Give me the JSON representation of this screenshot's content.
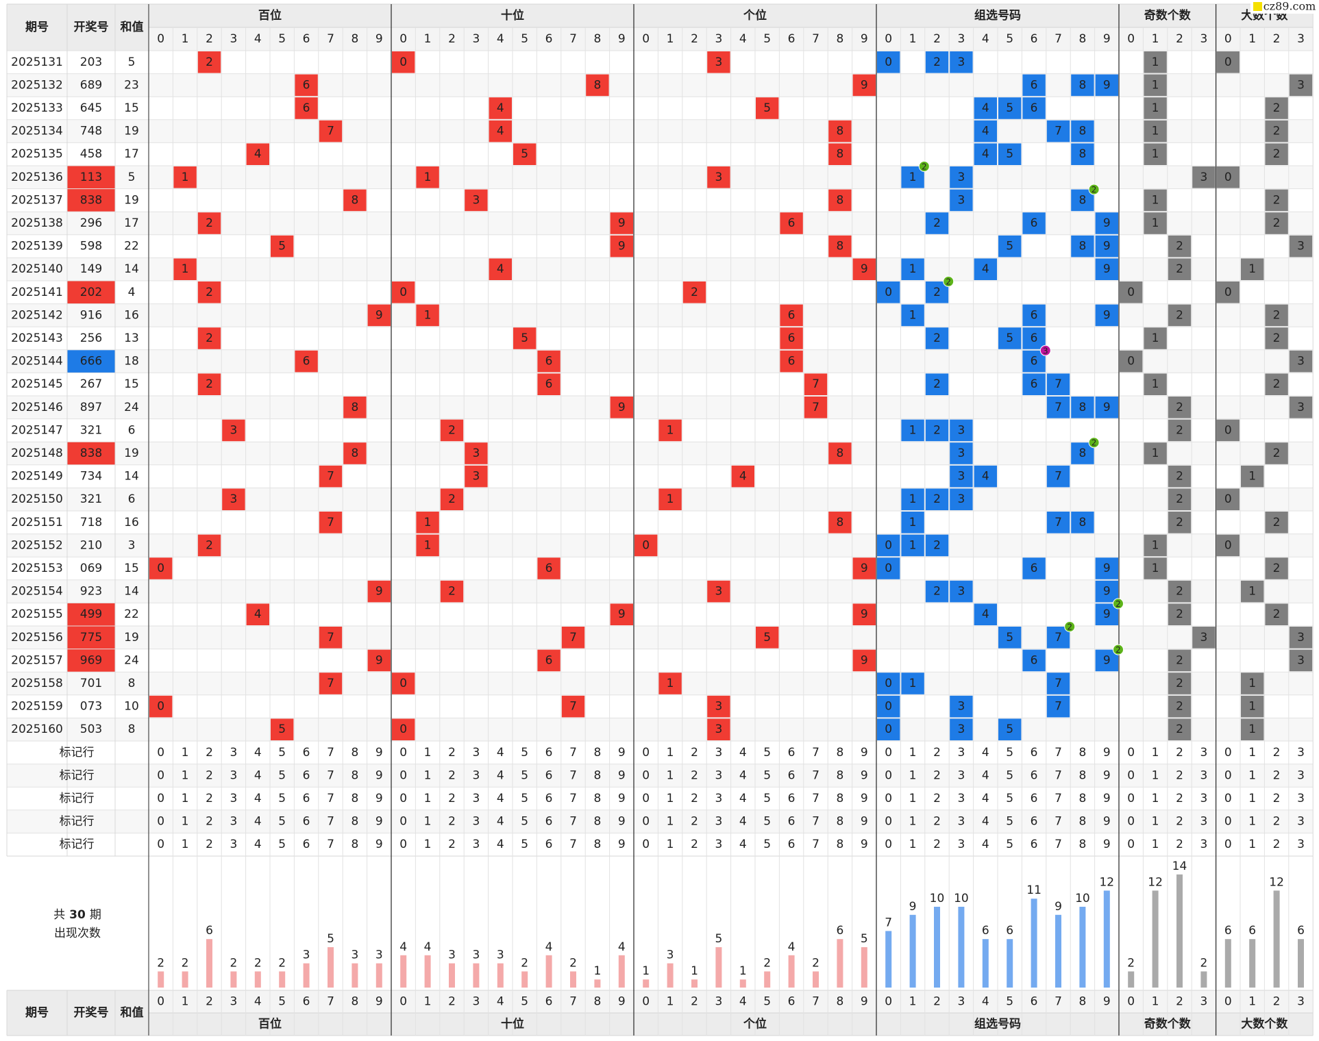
{
  "header": {
    "issue": "期号",
    "number": "开奖号",
    "sum": "和值"
  },
  "watermark": "cz89.com",
  "groups": [
    {
      "name": "百位",
      "digits": [
        0,
        1,
        2,
        3,
        4,
        5,
        6,
        7,
        8,
        9
      ],
      "color": "#f03c33",
      "bar_color": "#f4a9a9",
      "count_color": "#e8453c"
    },
    {
      "name": "十位",
      "digits": [
        0,
        1,
        2,
        3,
        4,
        5,
        6,
        7,
        8,
        9
      ],
      "color": "#f03c33",
      "bar_color": "#f4a9a9",
      "count_color": "#e8453c"
    },
    {
      "name": "个位",
      "digits": [
        0,
        1,
        2,
        3,
        4,
        5,
        6,
        7,
        8,
        9
      ],
      "color": "#f03c33",
      "bar_color": "#f4a9a9",
      "count_color": "#e8453c"
    },
    {
      "name": "组选号码",
      "digits": [
        0,
        1,
        2,
        3,
        4,
        5,
        6,
        7,
        8,
        9
      ],
      "color": "#1e7be6",
      "bar_color": "#74aaf0",
      "count_color": "#2a78d0"
    },
    {
      "name": "奇数个数",
      "digits": [
        0,
        1,
        2,
        3
      ],
      "color": "#7f7f7f",
      "bar_color": "#aaaaaa",
      "count_color": "#666666"
    },
    {
      "name": "大数个数",
      "digits": [
        0,
        1,
        2,
        3
      ],
      "color": "#7f7f7f",
      "bar_color": "#aaaaaa",
      "count_color": "#666666"
    }
  ],
  "highlight_colors": {
    "2": "#f03c33",
    "3": "#1e7be6"
  },
  "badge_colors": {
    "2": "#5db419",
    "3": "#c0149b"
  },
  "rows": [
    {
      "issue": "2025131",
      "number": "203",
      "sum": 5,
      "cells": [
        2,
        0,
        3,
        [
          0,
          2,
          3
        ],
        1,
        0
      ],
      "badge": null
    },
    {
      "issue": "2025132",
      "number": "689",
      "sum": 23,
      "cells": [
        6,
        8,
        9,
        [
          6,
          8,
          9
        ],
        1,
        3
      ],
      "badge": null
    },
    {
      "issue": "2025133",
      "number": "645",
      "sum": 15,
      "cells": [
        6,
        4,
        5,
        [
          4,
          5,
          6
        ],
        1,
        2
      ],
      "badge": null
    },
    {
      "issue": "2025134",
      "number": "748",
      "sum": 19,
      "cells": [
        7,
        4,
        8,
        [
          4,
          7,
          8
        ],
        1,
        2
      ],
      "badge": null
    },
    {
      "issue": "2025135",
      "number": "458",
      "sum": 17,
      "cells": [
        4,
        5,
        8,
        [
          4,
          5,
          8
        ],
        1,
        2
      ],
      "badge": null
    },
    {
      "issue": "2025136",
      "number": "113",
      "sum": 5,
      "cells": [
        1,
        1,
        3,
        [
          1,
          3
        ],
        3,
        0
      ],
      "badge": {
        "digit": 1,
        "count": 2
      }
    },
    {
      "issue": "2025137",
      "number": "838",
      "sum": 19,
      "cells": [
        8,
        3,
        8,
        [
          3,
          8
        ],
        1,
        2
      ],
      "badge": {
        "digit": 8,
        "count": 2
      }
    },
    {
      "issue": "2025138",
      "number": "296",
      "sum": 17,
      "cells": [
        2,
        9,
        6,
        [
          2,
          6,
          9
        ],
        1,
        2
      ],
      "badge": null
    },
    {
      "issue": "2025139",
      "number": "598",
      "sum": 22,
      "cells": [
        5,
        9,
        8,
        [
          5,
          8,
          9
        ],
        2,
        3
      ],
      "badge": null
    },
    {
      "issue": "2025140",
      "number": "149",
      "sum": 14,
      "cells": [
        1,
        4,
        9,
        [
          1,
          4,
          9
        ],
        2,
        1
      ],
      "badge": null
    },
    {
      "issue": "2025141",
      "number": "202",
      "sum": 4,
      "cells": [
        2,
        0,
        2,
        [
          0,
          2
        ],
        0,
        0
      ],
      "badge": {
        "digit": 2,
        "count": 2
      }
    },
    {
      "issue": "2025142",
      "number": "916",
      "sum": 16,
      "cells": [
        9,
        1,
        6,
        [
          1,
          6,
          9
        ],
        2,
        2
      ],
      "badge": null
    },
    {
      "issue": "2025143",
      "number": "256",
      "sum": 13,
      "cells": [
        2,
        5,
        6,
        [
          2,
          5,
          6
        ],
        1,
        2
      ],
      "badge": null
    },
    {
      "issue": "2025144",
      "number": "666",
      "sum": 18,
      "cells": [
        6,
        6,
        6,
        [
          6
        ],
        0,
        3
      ],
      "badge": {
        "digit": 6,
        "count": 3
      }
    },
    {
      "issue": "2025145",
      "number": "267",
      "sum": 15,
      "cells": [
        2,
        6,
        7,
        [
          2,
          6,
          7
        ],
        1,
        2
      ],
      "badge": null
    },
    {
      "issue": "2025146",
      "number": "897",
      "sum": 24,
      "cells": [
        8,
        9,
        7,
        [
          7,
          8,
          9
        ],
        2,
        3
      ],
      "badge": null
    },
    {
      "issue": "2025147",
      "number": "321",
      "sum": 6,
      "cells": [
        3,
        2,
        1,
        [
          1,
          2,
          3
        ],
        2,
        0
      ],
      "badge": null
    },
    {
      "issue": "2025148",
      "number": "838",
      "sum": 19,
      "cells": [
        8,
        3,
        8,
        [
          3,
          8
        ],
        1,
        2
      ],
      "badge": {
        "digit": 8,
        "count": 2
      }
    },
    {
      "issue": "2025149",
      "number": "734",
      "sum": 14,
      "cells": [
        7,
        3,
        4,
        [
          3,
          4,
          7
        ],
        2,
        1
      ],
      "badge": null
    },
    {
      "issue": "2025150",
      "number": "321",
      "sum": 6,
      "cells": [
        3,
        2,
        1,
        [
          1,
          2,
          3
        ],
        2,
        0
      ],
      "badge": null
    },
    {
      "issue": "2025151",
      "number": "718",
      "sum": 16,
      "cells": [
        7,
        1,
        8,
        [
          1,
          7,
          8
        ],
        2,
        2
      ],
      "badge": null
    },
    {
      "issue": "2025152",
      "number": "210",
      "sum": 3,
      "cells": [
        2,
        1,
        0,
        [
          0,
          1,
          2
        ],
        1,
        0
      ],
      "badge": null
    },
    {
      "issue": "2025153",
      "number": "069",
      "sum": 15,
      "cells": [
        0,
        6,
        9,
        [
          0,
          6,
          9
        ],
        1,
        2
      ],
      "badge": null
    },
    {
      "issue": "2025154",
      "number": "923",
      "sum": 14,
      "cells": [
        9,
        2,
        3,
        [
          2,
          3,
          9
        ],
        2,
        1
      ],
      "badge": null
    },
    {
      "issue": "2025155",
      "number": "499",
      "sum": 22,
      "cells": [
        4,
        9,
        9,
        [
          4,
          9
        ],
        2,
        2
      ],
      "badge": {
        "digit": 9,
        "count": 2
      }
    },
    {
      "issue": "2025156",
      "number": "775",
      "sum": 19,
      "cells": [
        7,
        7,
        5,
        [
          5,
          7
        ],
        3,
        3
      ],
      "badge": {
        "digit": 7,
        "count": 2
      }
    },
    {
      "issue": "2025157",
      "number": "969",
      "sum": 24,
      "cells": [
        9,
        6,
        9,
        [
          6,
          9
        ],
        2,
        3
      ],
      "badge": {
        "digit": 9,
        "count": 2
      }
    },
    {
      "issue": "2025158",
      "number": "701",
      "sum": 8,
      "cells": [
        7,
        0,
        1,
        [
          0,
          1,
          7
        ],
        2,
        1
      ],
      "badge": null
    },
    {
      "issue": "2025159",
      "number": "073",
      "sum": 10,
      "cells": [
        0,
        7,
        3,
        [
          0,
          3,
          7
        ],
        2,
        1
      ],
      "badge": null
    },
    {
      "issue": "2025160",
      "number": "503",
      "sum": 8,
      "cells": [
        5,
        0,
        3,
        [
          0,
          3,
          5
        ],
        2,
        1
      ],
      "badge": null
    }
  ],
  "marker_rows": [
    "标记行",
    "标记行",
    "标记行",
    "标记行",
    "标记行"
  ],
  "stats": {
    "prefix": "共",
    "periods": 30,
    "unit": "期",
    "label": "出现次数",
    "counts": [
      [
        2,
        2,
        6,
        2,
        2,
        2,
        3,
        5,
        3,
        3
      ],
      [
        4,
        4,
        3,
        3,
        3,
        2,
        4,
        2,
        1,
        4
      ],
      [
        1,
        3,
        1,
        5,
        1,
        2,
        4,
        2,
        6,
        5
      ],
      [
        7,
        9,
        10,
        10,
        6,
        6,
        11,
        9,
        10,
        12
      ],
      [
        2,
        12,
        14,
        2
      ],
      [
        6,
        6,
        12,
        6
      ]
    ]
  }
}
